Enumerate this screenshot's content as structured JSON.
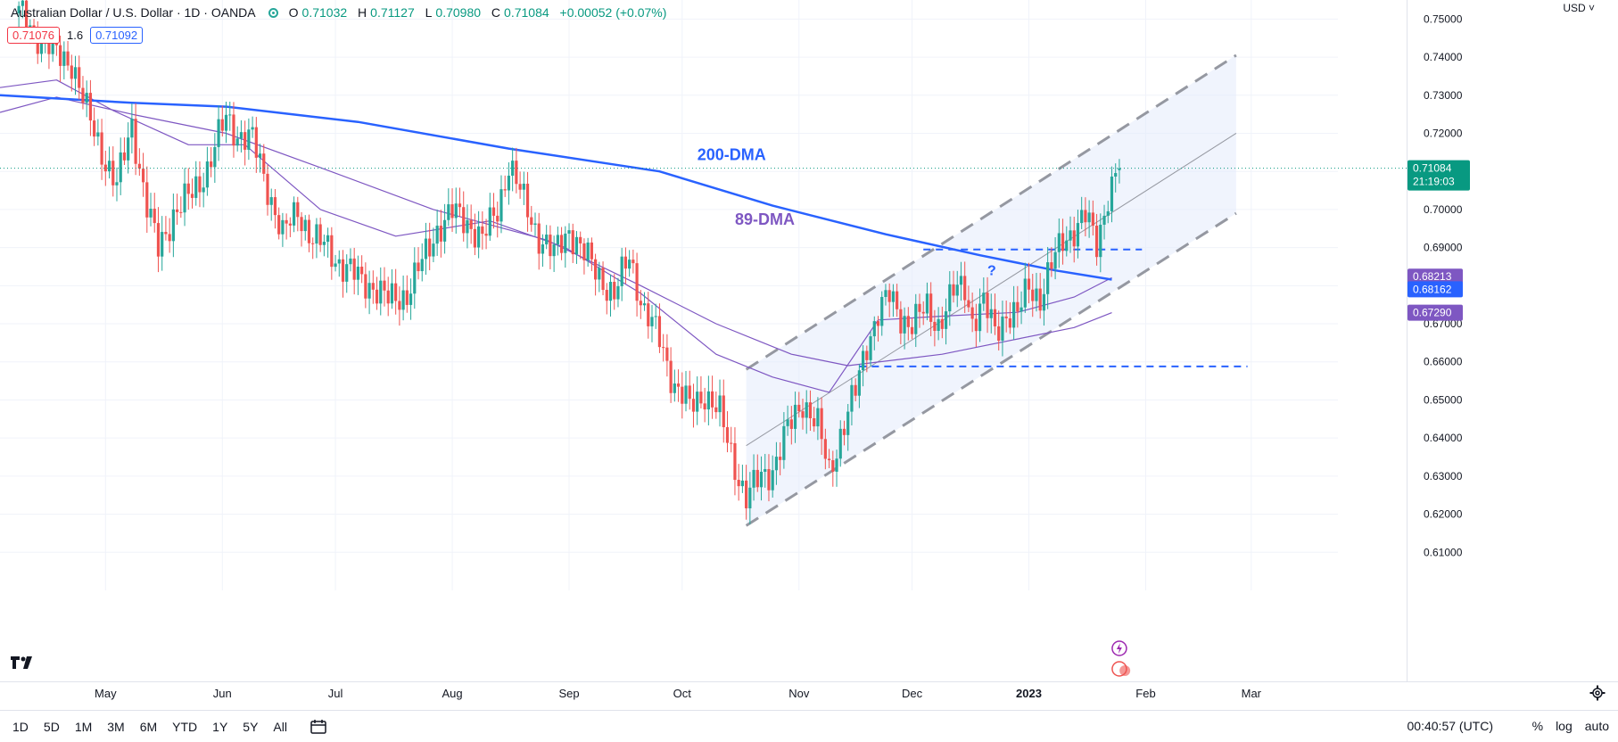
{
  "header": {
    "title": "Australian Dollar / U.S. Dollar · 1D · OANDA",
    "ohlc": [
      {
        "k": "O",
        "v": "0.71032"
      },
      {
        "k": "H",
        "v": "0.71127"
      },
      {
        "k": "L",
        "v": "0.70980"
      },
      {
        "k": "C",
        "v": "0.71084"
      },
      {
        "k": "",
        "v": "+0.00052 (+0.07%)"
      }
    ],
    "bid": "0.71076",
    "spread": "1.6",
    "ask": "0.71092",
    "currency": "USD"
  },
  "colors": {
    "up": "#26a69a",
    "down": "#ef5350",
    "dma200": "#2962ff",
    "dma89": "#7e57c2",
    "channel_fill": "#e3ebfb",
    "channel_line": "#9598a1",
    "dashed_blue": "#2962ff",
    "current_price": "#089981",
    "grid": "#f0f3fa",
    "axis_text": "#131722"
  },
  "chart_data": {
    "type": "candlestick",
    "title": "Australian Dollar / U.S. Dollar · 1D · OANDA",
    "y_range": [
      0.6,
      0.755
    ],
    "y_ticks": [
      "0.75000",
      "0.74000",
      "0.73000",
      "0.72000",
      "0.71000",
      "0.70000",
      "0.69000",
      "0.68000",
      "0.67000",
      "0.66000",
      "0.65000",
      "0.64000",
      "0.63000",
      "0.62000",
      "0.61000"
    ],
    "x_ticks": [
      {
        "label": "May",
        "day": 23
      },
      {
        "label": "Jun",
        "day": 54
      },
      {
        "label": "Jul",
        "day": 84
      },
      {
        "label": "Aug",
        "day": 115
      },
      {
        "label": "Sep",
        "day": 146
      },
      {
        "label": "Oct",
        "day": 176
      },
      {
        "label": "Nov",
        "day": 207
      },
      {
        "label": "Dec",
        "day": 237
      },
      {
        "label": "2023",
        "day": 268
      },
      {
        "label": "Feb",
        "day": 299
      },
      {
        "label": "Mar",
        "day": 327
      }
    ],
    "day_range": [
      -5,
      350
    ],
    "closes": [
      {
        "d": 0,
        "c": 0.7515
      },
      {
        "d": 10,
        "c": 0.7405
      },
      {
        "d": 14,
        "c": 0.739
      },
      {
        "d": 18,
        "c": 0.7255
      },
      {
        "d": 23,
        "c": 0.713
      },
      {
        "d": 26,
        "c": 0.706
      },
      {
        "d": 30,
        "c": 0.7225
      },
      {
        "d": 34,
        "c": 0.7005
      },
      {
        "d": 37,
        "c": 0.6895
      },
      {
        "d": 41,
        "c": 0.699
      },
      {
        "d": 46,
        "c": 0.704
      },
      {
        "d": 50,
        "c": 0.711
      },
      {
        "d": 55,
        "c": 0.724
      },
      {
        "d": 58,
        "c": 0.72
      },
      {
        "d": 62,
        "c": 0.718
      },
      {
        "d": 66,
        "c": 0.706
      },
      {
        "d": 70,
        "c": 0.693
      },
      {
        "d": 74,
        "c": 0.7
      },
      {
        "d": 78,
        "c": 0.692
      },
      {
        "d": 82,
        "c": 0.69
      },
      {
        "d": 86,
        "c": 0.685
      },
      {
        "d": 90,
        "c": 0.682
      },
      {
        "d": 94,
        "c": 0.68
      },
      {
        "d": 98,
        "c": 0.676
      },
      {
        "d": 103,
        "c": 0.678
      },
      {
        "d": 107,
        "c": 0.686
      },
      {
        "d": 111,
        "c": 0.695
      },
      {
        "d": 115,
        "c": 0.699
      },
      {
        "d": 119,
        "c": 0.697
      },
      {
        "d": 123,
        "c": 0.692
      },
      {
        "d": 127,
        "c": 0.7
      },
      {
        "d": 130,
        "c": 0.712
      },
      {
        "d": 134,
        "c": 0.702
      },
      {
        "d": 138,
        "c": 0.693
      },
      {
        "d": 142,
        "c": 0.688
      },
      {
        "d": 146,
        "c": 0.695
      },
      {
        "d": 150,
        "c": 0.688
      },
      {
        "d": 154,
        "c": 0.683
      },
      {
        "d": 158,
        "c": 0.677
      },
      {
        "d": 162,
        "c": 0.688
      },
      {
        "d": 166,
        "c": 0.673
      },
      {
        "d": 170,
        "c": 0.666
      },
      {
        "d": 174,
        "c": 0.654
      },
      {
        "d": 178,
        "c": 0.648
      },
      {
        "d": 182,
        "c": 0.652
      },
      {
        "d": 186,
        "c": 0.646
      },
      {
        "d": 190,
        "c": 0.633
      },
      {
        "d": 193,
        "c": 0.624
      },
      {
        "d": 197,
        "c": 0.63
      },
      {
        "d": 200,
        "c": 0.632
      },
      {
        "d": 204,
        "c": 0.642
      },
      {
        "d": 208,
        "c": 0.65
      },
      {
        "d": 212,
        "c": 0.643
      },
      {
        "d": 215,
        "c": 0.631
      },
      {
        "d": 218,
        "c": 0.641
      },
      {
        "d": 222,
        "c": 0.652
      },
      {
        "d": 225,
        "c": 0.665
      },
      {
        "d": 228,
        "c": 0.673
      },
      {
        "d": 231,
        "c": 0.677
      },
      {
        "d": 234,
        "c": 0.672
      },
      {
        "d": 237,
        "c": 0.67
      },
      {
        "d": 241,
        "c": 0.674
      },
      {
        "d": 244,
        "c": 0.67
      },
      {
        "d": 248,
        "c": 0.678
      },
      {
        "d": 251,
        "c": 0.68
      },
      {
        "d": 253,
        "c": 0.671
      },
      {
        "d": 256,
        "c": 0.675
      },
      {
        "d": 259,
        "c": 0.668
      },
      {
        "d": 262,
        "c": 0.673
      },
      {
        "d": 265,
        "c": 0.672
      },
      {
        "d": 268,
        "c": 0.68
      },
      {
        "d": 271,
        "c": 0.677
      },
      {
        "d": 274,
        "c": 0.685
      },
      {
        "d": 277,
        "c": 0.692
      },
      {
        "d": 280,
        "c": 0.695
      },
      {
        "d": 283,
        "c": 0.698
      },
      {
        "d": 286,
        "c": 0.691
      },
      {
        "d": 289,
        "c": 0.704
      },
      {
        "d": 292,
        "c": 0.7108
      }
    ],
    "dma200": {
      "name": "200-DMA",
      "values": [
        {
          "d": -5,
          "v": 0.73
        },
        {
          "d": 30,
          "v": 0.728
        },
        {
          "d": 55,
          "v": 0.727
        },
        {
          "d": 90,
          "v": 0.723
        },
        {
          "d": 130,
          "v": 0.716
        },
        {
          "d": 170,
          "v": 0.71
        },
        {
          "d": 200,
          "v": 0.701
        },
        {
          "d": 230,
          "v": 0.6935
        },
        {
          "d": 255,
          "v": 0.688
        },
        {
          "d": 275,
          "v": 0.684
        },
        {
          "d": 290,
          "v": 0.6816
        }
      ]
    },
    "dma89": {
      "name": "89-DMA",
      "values": [
        {
          "d": -5,
          "v": 0.7255
        },
        {
          "d": 10,
          "v": 0.7295
        },
        {
          "d": 30,
          "v": 0.725
        },
        {
          "d": 55,
          "v": 0.72
        },
        {
          "d": 80,
          "v": 0.711
        },
        {
          "d": 110,
          "v": 0.7
        },
        {
          "d": 140,
          "v": 0.692
        },
        {
          "d": 165,
          "v": 0.68
        },
        {
          "d": 185,
          "v": 0.67
        },
        {
          "d": 205,
          "v": 0.662
        },
        {
          "d": 220,
          "v": 0.659
        },
        {
          "d": 245,
          "v": 0.662
        },
        {
          "d": 265,
          "v": 0.666
        },
        {
          "d": 280,
          "v": 0.669
        },
        {
          "d": 290,
          "v": 0.6729
        }
      ]
    },
    "dma_fast": {
      "values": [
        {
          "d": -5,
          "v": 0.732
        },
        {
          "d": 10,
          "v": 0.734
        },
        {
          "d": 25,
          "v": 0.726
        },
        {
          "d": 45,
          "v": 0.717
        },
        {
          "d": 60,
          "v": 0.717
        },
        {
          "d": 80,
          "v": 0.7
        },
        {
          "d": 100,
          "v": 0.693
        },
        {
          "d": 125,
          "v": 0.697
        },
        {
          "d": 145,
          "v": 0.69
        },
        {
          "d": 165,
          "v": 0.678
        },
        {
          "d": 185,
          "v": 0.662
        },
        {
          "d": 200,
          "v": 0.656
        },
        {
          "d": 215,
          "v": 0.652
        },
        {
          "d": 228,
          "v": 0.671
        },
        {
          "d": 245,
          "v": 0.672
        },
        {
          "d": 265,
          "v": 0.673
        },
        {
          "d": 280,
          "v": 0.677
        },
        {
          "d": 290,
          "v": 0.6821
        }
      ]
    },
    "channel": {
      "start_day": 193,
      "end_day": 323,
      "lower": [
        0.617,
        0.699
      ],
      "mid": [
        0.638,
        0.72
      ],
      "upper": [
        0.658,
        0.7405
      ]
    },
    "horizontal_levels": [
      {
        "value": 0.6895,
        "from": 240,
        "to": 298
      },
      {
        "value": 0.6588,
        "from": 223,
        "to": 326
      }
    ],
    "current_price": "0.71084",
    "countdown": "21:19:03",
    "price_labels": [
      {
        "text": "0.68213",
        "value": 0.68213,
        "color": "#7e57c2"
      },
      {
        "text": "0.68162",
        "value": 0.68162,
        "color": "#2962ff"
      },
      {
        "text": "0.67290",
        "value": 0.6729,
        "color": "#7e57c2"
      }
    ],
    "annotations": [
      {
        "text": "200-DMA",
        "d": 180,
        "v": 0.713,
        "color": "#2962ff"
      },
      {
        "text": "89-DMA",
        "d": 190,
        "v": 0.696,
        "color": "#7e57c2"
      },
      {
        "text": "?",
        "d": 257,
        "v": 0.6828,
        "color": "#2962ff"
      }
    ]
  },
  "bottombar": {
    "ranges": [
      "1D",
      "5D",
      "1M",
      "3M",
      "6M",
      "YTD",
      "1Y",
      "5Y",
      "All"
    ],
    "clock": "00:40:57 (UTC)",
    "percent": "%",
    "log": "log",
    "auto": "auto"
  }
}
